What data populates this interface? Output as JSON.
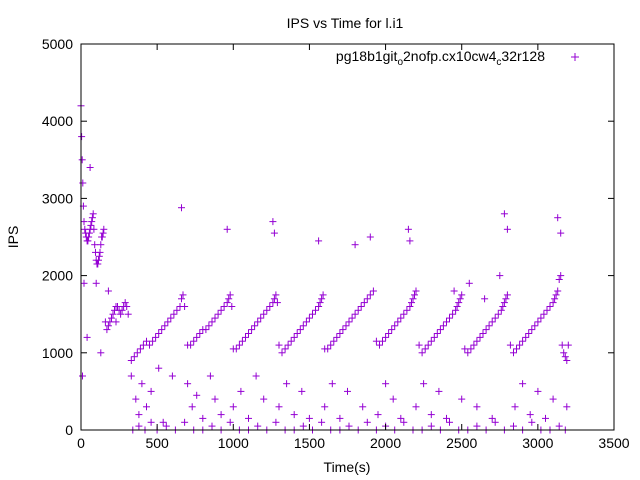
{
  "chart_data": {
    "type": "scatter",
    "title": "IPS vs Time for l.i1",
    "xlabel": "Time(s)",
    "ylabel": "IPS",
    "xlim": [
      0,
      3500
    ],
    "ylim": [
      0,
      5000
    ],
    "xticks": [
      0,
      500,
      1000,
      1500,
      2000,
      2500,
      3000,
      3500
    ],
    "yticks": [
      0,
      1000,
      2000,
      3000,
      4000,
      5000
    ],
    "legend": {
      "placement": "top-right",
      "label_parts": [
        "pg18b1git",
        "o",
        "2nofp.cx10cw4",
        "c",
        "32r128"
      ]
    },
    "marker": "plus",
    "color": "#9400d3",
    "series": [
      {
        "x": [
          0,
          4,
          8,
          12,
          16,
          20,
          25,
          30,
          35,
          40,
          45,
          50,
          55,
          60,
          65,
          70,
          75,
          80,
          85,
          90,
          95,
          100,
          105,
          110,
          115,
          120,
          125,
          130,
          135,
          140,
          145,
          150,
          160,
          170,
          180,
          190,
          200,
          210,
          220,
          230,
          240,
          250,
          260,
          270,
          280,
          290,
          300,
          310,
          330,
          350,
          370,
          390,
          410,
          430,
          450,
          470,
          490,
          510,
          530,
          550,
          570,
          590,
          610,
          630,
          650,
          660,
          670,
          680,
          700,
          720,
          740,
          760,
          780,
          800,
          820,
          840,
          860,
          880,
          900,
          920,
          940,
          960,
          970,
          980,
          990,
          1000,
          1020,
          1040,
          1060,
          1080,
          1100,
          1120,
          1140,
          1160,
          1180,
          1200,
          1220,
          1240,
          1260,
          1270,
          1280,
          1290,
          1300,
          1320,
          1340,
          1360,
          1380,
          1400,
          1420,
          1440,
          1460,
          1480,
          1500,
          1520,
          1540,
          1560,
          1570,
          1580,
          1590,
          1600,
          1620,
          1640,
          1660,
          1680,
          1700,
          1720,
          1740,
          1760,
          1780,
          1800,
          1820,
          1840,
          1860,
          1880,
          1900,
          1920,
          1940,
          1960,
          1980,
          2000,
          2020,
          2040,
          2060,
          2080,
          2100,
          2120,
          2140,
          2160,
          2170,
          2180,
          2190,
          2200,
          2220,
          2240,
          2260,
          2280,
          2300,
          2320,
          2340,
          2360,
          2380,
          2400,
          2420,
          2440,
          2460,
          2470,
          2480,
          2490,
          2500,
          2520,
          2540,
          2560,
          2580,
          2600,
          2620,
          2640,
          2660,
          2680,
          2700,
          2720,
          2740,
          2760,
          2770,
          2780,
          2790,
          2800,
          2820,
          2840,
          2860,
          2880,
          2900,
          2920,
          2940,
          2960,
          2980,
          3000,
          3020,
          3040,
          3060,
          3080,
          3100,
          3110,
          3120,
          3130,
          3140,
          3150,
          3160,
          3170,
          3180,
          3190,
          3200
        ],
        "y": [
          4200,
          3800,
          3500,
          3200,
          2900,
          2700,
          2600,
          2550,
          2500,
          2450,
          2450,
          2500,
          2550,
          2600,
          2650,
          2700,
          2750,
          2800,
          2600,
          2400,
          2300,
          2200,
          2150,
          2150,
          2200,
          2250,
          2300,
          2400,
          2500,
          2500,
          2550,
          2600,
          1400,
          1300,
          1350,
          1400,
          1450,
          1500,
          1550,
          1600,
          1600,
          1550,
          1500,
          1550,
          1600,
          1650,
          1600,
          1500,
          900,
          950,
          1000,
          1050,
          1100,
          1150,
          1100,
          1150,
          1200,
          1250,
          1300,
          1350,
          1400,
          1450,
          1500,
          1550,
          1600,
          1700,
          1750,
          1600,
          1100,
          1100,
          1150,
          1200,
          1250,
          1300,
          1300,
          1350,
          1400,
          1450,
          1500,
          1550,
          1600,
          1650,
          1700,
          1750,
          1600,
          1050,
          1050,
          1100,
          1150,
          1200,
          1250,
          1300,
          1350,
          1400,
          1450,
          1500,
          1550,
          1600,
          1650,
          1700,
          1750,
          1650,
          1100,
          1000,
          1050,
          1100,
          1150,
          1200,
          1250,
          1300,
          1350,
          1400,
          1450,
          1500,
          1550,
          1600,
          1650,
          1700,
          1750,
          1050,
          1050,
          1100,
          1150,
          1200,
          1250,
          1300,
          1350,
          1400,
          1450,
          1500,
          1550,
          1600,
          1650,
          1700,
          1750,
          1800,
          1150,
          1100,
          1150,
          1200,
          1250,
          1300,
          1350,
          1400,
          1450,
          1500,
          1550,
          1600,
          1650,
          1700,
          1750,
          1800,
          1100,
          1000,
          1050,
          1100,
          1150,
          1200,
          1250,
          1300,
          1350,
          1400,
          1450,
          1500,
          1550,
          1600,
          1650,
          1700,
          1750,
          1050,
          1000,
          1050,
          1100,
          1150,
          1200,
          1250,
          1300,
          1350,
          1400,
          1450,
          1500,
          1550,
          1600,
          1650,
          1700,
          1750,
          1100,
          1000,
          1050,
          1100,
          1150,
          1200,
          1250,
          1300,
          1350,
          1400,
          1450,
          1500,
          1550,
          1600,
          1650,
          1700,
          1750,
          1800,
          1950,
          2000,
          1100,
          1000,
          950,
          900,
          1100
        ]
      },
      {
        "x": [
          10,
          20,
          40,
          60,
          100,
          130,
          180,
          230,
          330,
          360,
          380,
          400,
          430,
          460,
          510,
          540,
          600,
          660,
          700,
          730,
          760,
          800,
          850,
          880,
          920,
          960,
          1000,
          1050,
          1100,
          1150,
          1200,
          1260,
          1270,
          1300,
          1350,
          1400,
          1450,
          1500,
          1560,
          1600,
          1650,
          1700,
          1750,
          1800,
          1850,
          1900,
          1950,
          2000,
          2050,
          2100,
          2150,
          2160,
          2200,
          2250,
          2300,
          2350,
          2400,
          2450,
          2500,
          2550,
          2600,
          2650,
          2700,
          2750,
          2780,
          2800,
          2850,
          2900,
          2950,
          3000,
          3050,
          3100,
          3130,
          3150,
          3190
        ],
        "y": [
          700,
          1900,
          1200,
          3400,
          1900,
          1000,
          1800,
          1400,
          700,
          400,
          200,
          600,
          300,
          500,
          800,
          100,
          700,
          2880,
          600,
          300,
          450,
          150,
          700,
          400,
          200,
          2600,
          300,
          500,
          150,
          700,
          400,
          2700,
          2550,
          300,
          600,
          200,
          500,
          150,
          2450,
          300,
          600,
          150,
          500,
          2400,
          300,
          2500,
          200,
          600,
          400,
          150,
          2600,
          2450,
          300,
          600,
          200,
          500,
          150,
          1800,
          400,
          1900,
          300,
          1700,
          150,
          2000,
          2800,
          2600,
          300,
          600,
          200,
          500,
          150,
          400,
          2750,
          2550,
          300
        ]
      },
      {
        "x": [
          340,
          380,
          420,
          460,
          500,
          560,
          620,
          680,
          740,
          800,
          860,
          920,
          980,
          1040,
          1100,
          1160,
          1220,
          1280,
          1340,
          1400,
          1460,
          1520,
          1580,
          1640,
          1700,
          1760,
          1820,
          1880,
          1940,
          2000,
          2060,
          2120,
          2180,
          2240,
          2300,
          2360,
          2420,
          2480,
          2540,
          2600,
          2660,
          2720,
          2780,
          2840,
          2900,
          2960,
          3020,
          3080,
          3140,
          3180
        ],
        "y": [
          0,
          50,
          0,
          100,
          0,
          50,
          0,
          100,
          0,
          0,
          50,
          0,
          100,
          0,
          0,
          50,
          0,
          100,
          0,
          0,
          50,
          0,
          100,
          0,
          0,
          50,
          0,
          100,
          0,
          50,
          0,
          100,
          0,
          0,
          50,
          0,
          100,
          0,
          0,
          50,
          0,
          100,
          0,
          50,
          0,
          100,
          0,
          0,
          50,
          0
        ]
      }
    ]
  }
}
